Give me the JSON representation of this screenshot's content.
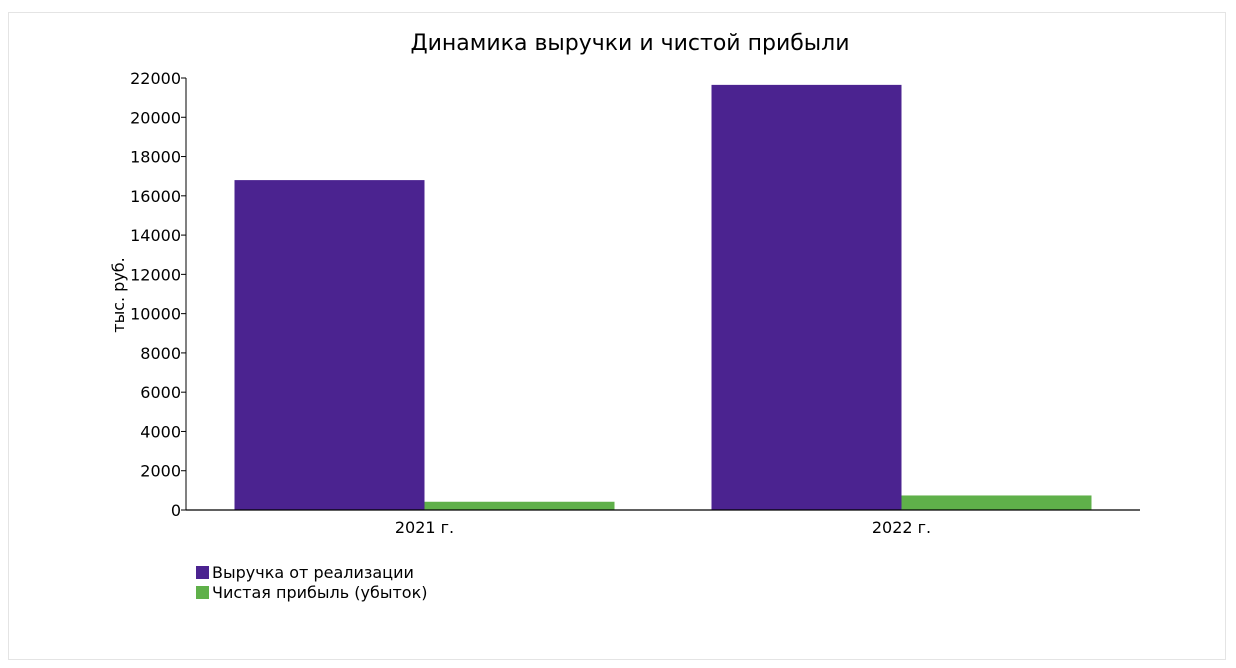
{
  "chart_data": {
    "type": "bar",
    "title": "Динамика выручки и чистой прибыли",
    "xlabel": "",
    "ylabel": "тыс. руб.",
    "categories": [
      "2021 г.",
      "2022 г."
    ],
    "series": [
      {
        "name": "Выручка от реализации",
        "values": [
          16800,
          21650
        ],
        "color": "#4b2390"
      },
      {
        "name": "Чистая прибыль (убыток)",
        "values": [
          420,
          740
        ],
        "color": "#5fb04a"
      }
    ],
    "ylim": [
      0,
      22000
    ],
    "yticks": [
      0,
      2000,
      4000,
      6000,
      8000,
      10000,
      12000,
      14000,
      16000,
      18000,
      20000,
      22000
    ],
    "grid": false,
    "legend_position": "bottom-left"
  }
}
